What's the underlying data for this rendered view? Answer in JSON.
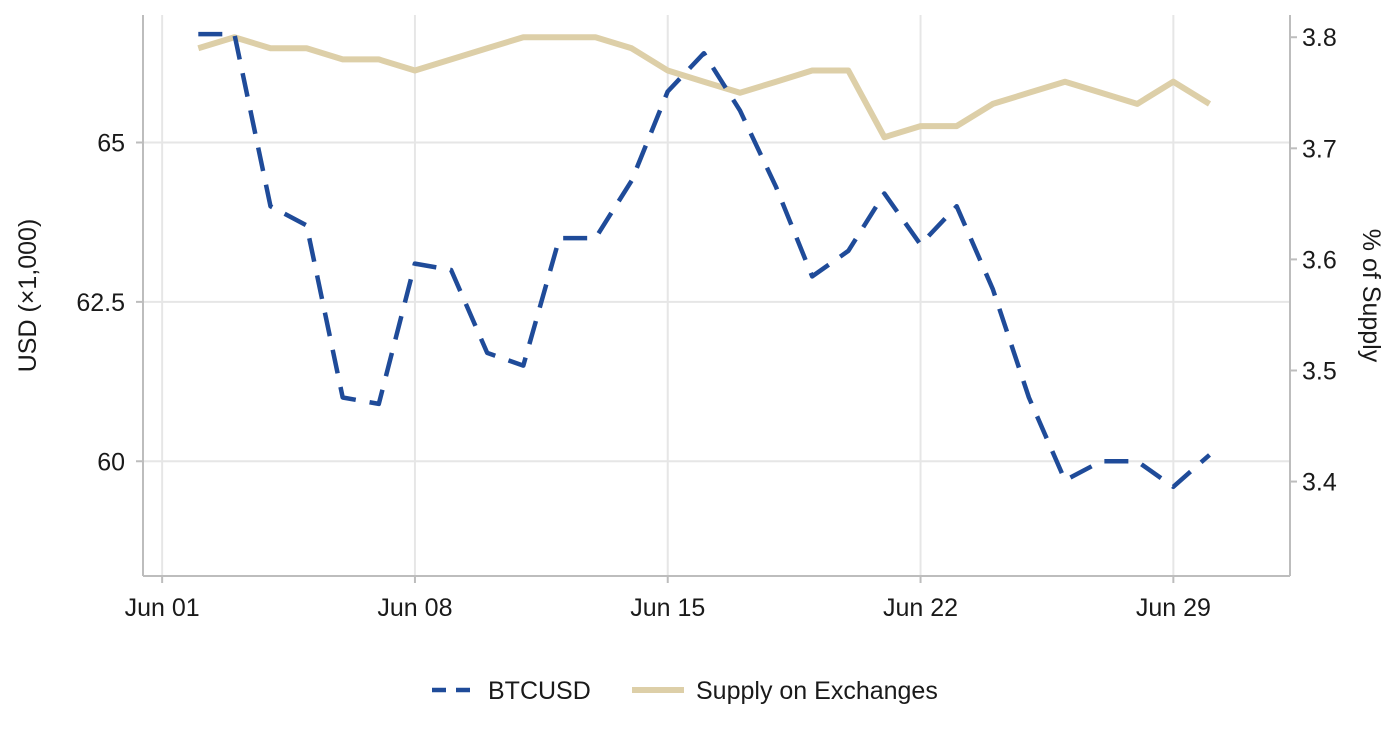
{
  "chart_data": {
    "type": "line",
    "x_type": "date",
    "x": [
      "2024-06-02",
      "2024-06-03",
      "2024-06-04",
      "2024-06-05",
      "2024-06-06",
      "2024-06-07",
      "2024-06-08",
      "2024-06-09",
      "2024-06-10",
      "2024-06-11",
      "2024-06-12",
      "2024-06-13",
      "2024-06-14",
      "2024-06-15",
      "2024-06-16",
      "2024-06-17",
      "2024-06-18",
      "2024-06-19",
      "2024-06-20",
      "2024-06-21",
      "2024-06-22",
      "2024-06-23",
      "2024-06-24",
      "2024-06-25",
      "2024-06-26",
      "2024-06-27",
      "2024-06-28",
      "2024-06-29",
      "2024-06-30"
    ],
    "series": [
      {
        "name": "BTCUSD",
        "axis": "left",
        "color": "#1f4b99",
        "dash": "dashed",
        "values": [
          66.7,
          66.7,
          64.0,
          63.7,
          61.0,
          60.9,
          63.1,
          63.0,
          61.7,
          61.5,
          63.5,
          63.5,
          64.4,
          65.8,
          66.4,
          65.5,
          64.3,
          62.9,
          63.3,
          64.2,
          63.4,
          64.0,
          62.7,
          61.0,
          59.7,
          60.0,
          60.0,
          59.6,
          60.1
        ]
      },
      {
        "name": "Supply on Exchanges",
        "axis": "right",
        "color": "#ddcfa8",
        "dash": "solid",
        "values": [
          3.79,
          3.8,
          3.79,
          3.79,
          3.78,
          3.78,
          3.77,
          3.78,
          3.79,
          3.8,
          3.8,
          3.8,
          3.79,
          3.77,
          3.76,
          3.75,
          3.76,
          3.77,
          3.77,
          3.71,
          3.72,
          3.72,
          3.74,
          3.75,
          3.76,
          3.75,
          3.74,
          3.76,
          3.74
        ]
      }
    ],
    "x_ticks": [
      {
        "date": "2024-06-01",
        "label": "Jun 01"
      },
      {
        "date": "2024-06-08",
        "label": "Jun 08"
      },
      {
        "date": "2024-06-15",
        "label": "Jun 15"
      },
      {
        "date": "2024-06-22",
        "label": "Jun 22"
      },
      {
        "date": "2024-06-29",
        "label": "Jun 29"
      }
    ],
    "y_left": {
      "label": "USD (×1,000)",
      "ticks": [
        {
          "value": 60,
          "label": "60"
        },
        {
          "value": 62.5,
          "label": "62.5"
        },
        {
          "value": 65,
          "label": "65"
        }
      ],
      "lim": [
        58.2,
        67.0
      ]
    },
    "y_right": {
      "label": "% of Supply",
      "ticks": [
        {
          "value": 3.4,
          "label": "3.4"
        },
        {
          "value": 3.5,
          "label": "3.5"
        },
        {
          "value": 3.6,
          "label": "3.6"
        },
        {
          "value": 3.7,
          "label": "3.7"
        },
        {
          "value": 3.8,
          "label": "3.8"
        }
      ],
      "lim": [
        3.315,
        3.82
      ]
    },
    "xlim": [
      "2024-06-01",
      "2024-06-30"
    ],
    "grid": true,
    "legend_position": "bottom"
  }
}
